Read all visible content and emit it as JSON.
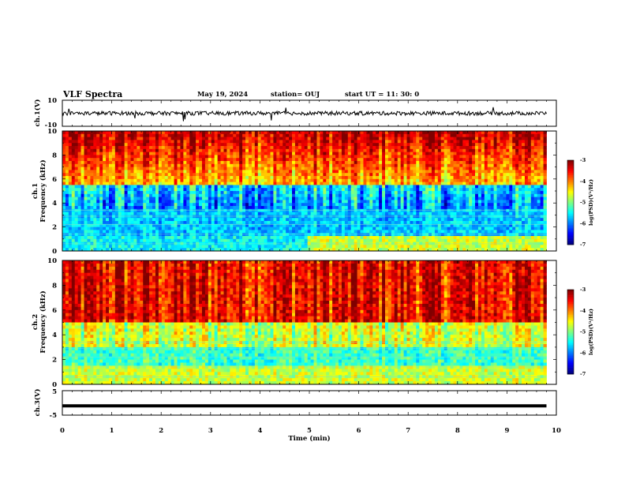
{
  "header": {
    "title": "VLF Spectra",
    "date": "May 19, 2024",
    "station": "station= OUJ",
    "start": "start  UT  =   11: 30: 0"
  },
  "colors": {
    "low": "#00007f",
    "mid": "#00ff00",
    "high": "#ff0000",
    "trace": "#000000"
  },
  "chart_data": [
    {
      "type": "line",
      "ylabel": "ch.1(V)",
      "ylim": [
        -10,
        10
      ],
      "ytick_labels": [
        "10",
        "-10"
      ],
      "xlim": [
        0,
        10
      ],
      "baseline": 0,
      "description_of_signal": "noisy trace around 0 V with occasional spikes"
    },
    {
      "type": "heatmap",
      "ylabel_top": "ch.1",
      "ylabel": "Frequency  (kHz)",
      "ylim": [
        0,
        10
      ],
      "yticks": [
        "0",
        "2",
        "4",
        "6",
        "8",
        "10"
      ],
      "xlim": [
        0,
        10
      ],
      "colorbar": {
        "label": "log(PSD)(V²/Hz)",
        "range": [
          -7,
          -3
        ],
        "ticks": [
          "-3",
          "-4",
          "-5",
          "-6",
          "-7"
        ]
      }
    },
    {
      "type": "heatmap",
      "ylabel_top": "ch.2",
      "ylabel": "Frequency  (kHz)",
      "ylim": [
        0,
        10
      ],
      "yticks": [
        "0",
        "2",
        "4",
        "6",
        "8",
        "10"
      ],
      "xlim": [
        0,
        10
      ],
      "colorbar": {
        "label": "log(PSD)(V²/Hz)",
        "range": [
          -7,
          -3
        ],
        "ticks": [
          "-3",
          "-4",
          "-5",
          "-6",
          "-7"
        ]
      }
    },
    {
      "type": "line",
      "ylabel": "ch.3(V)",
      "ylim": [
        -5,
        5
      ],
      "ytick_labels": [
        "5",
        "-5"
      ],
      "xlim": [
        0,
        10
      ],
      "baseline": -1.2,
      "description_of_signal": "flat thick trace near -1.2 V"
    }
  ],
  "xaxis": {
    "label": "Time  (min)",
    "ticks": [
      "0",
      "1",
      "2",
      "3",
      "4",
      "5",
      "6",
      "7",
      "8",
      "9",
      "10"
    ],
    "range": [
      0,
      10
    ]
  }
}
